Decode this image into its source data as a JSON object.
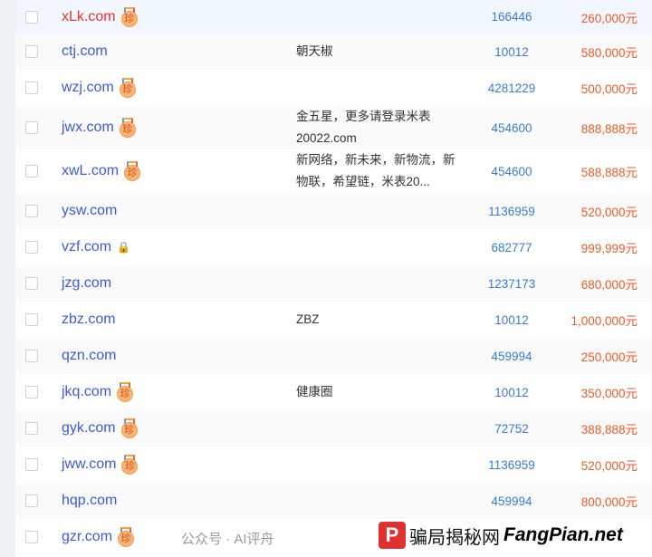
{
  "rows": [
    {
      "domain": "xLk.com",
      "medal": true,
      "highlight": true,
      "desc": "",
      "num": "166446",
      "price": "260,000元"
    },
    {
      "domain": "ctj.com",
      "medal": false,
      "desc": "朝天椒",
      "num": "10012",
      "price": "580,000元"
    },
    {
      "domain": "wzj.com",
      "medal": true,
      "desc": "",
      "num": "4281229",
      "price": "500,000元"
    },
    {
      "domain": "jwx.com",
      "medal": true,
      "desc": "金五星，更多请登录米表20022.com",
      "num": "454600",
      "price": "888,888元"
    },
    {
      "domain": "xwL.com",
      "medal": true,
      "desc": "新网络，新未来，新物流，新物联，希望链，米表20...",
      "num": "454600",
      "price": "588,888元"
    },
    {
      "domain": "ysw.com",
      "medal": false,
      "desc": "",
      "num": "1136959",
      "price": "520,000元"
    },
    {
      "domain": "vzf.com",
      "medal": false,
      "lock": true,
      "desc": "",
      "num": "682777",
      "price": "999,999元"
    },
    {
      "domain": "jzg.com",
      "medal": false,
      "desc": "",
      "num": "1237173",
      "price": "680,000元"
    },
    {
      "domain": "zbz.com",
      "medal": false,
      "desc": "ZBZ",
      "num": "10012",
      "price": "1,000,000元"
    },
    {
      "domain": "qzn.com",
      "medal": false,
      "desc": "",
      "num": "459994",
      "price": "250,000元"
    },
    {
      "domain": "jkq.com",
      "medal": true,
      "desc": "健康圈",
      "num": "10012",
      "price": "350,000元"
    },
    {
      "domain": "gyk.com",
      "medal": true,
      "desc": "",
      "num": "72752",
      "price": "388,888元"
    },
    {
      "domain": "jww.com",
      "medal": true,
      "desc": "",
      "num": "1136959",
      "price": "520,000元"
    },
    {
      "domain": "hqp.com",
      "medal": false,
      "desc": "",
      "num": "459994",
      "price": "800,000元"
    },
    {
      "domain": "gzr.com",
      "medal": true,
      "desc": "",
      "num": "",
      "price": ""
    }
  ],
  "medal_glyph": "珍",
  "lock_icon": "lock-icon",
  "colors": {
    "domain": "#3a5bd9",
    "domain_highlight": "#f0312a",
    "price": "#f05a24",
    "num": "#3a7bd5"
  },
  "watermark": {
    "text": "公众号 · AI评舟",
    "brand_cn": "骗局揭秘网",
    "brand_en": "FangPian.net",
    "logo": "P"
  }
}
